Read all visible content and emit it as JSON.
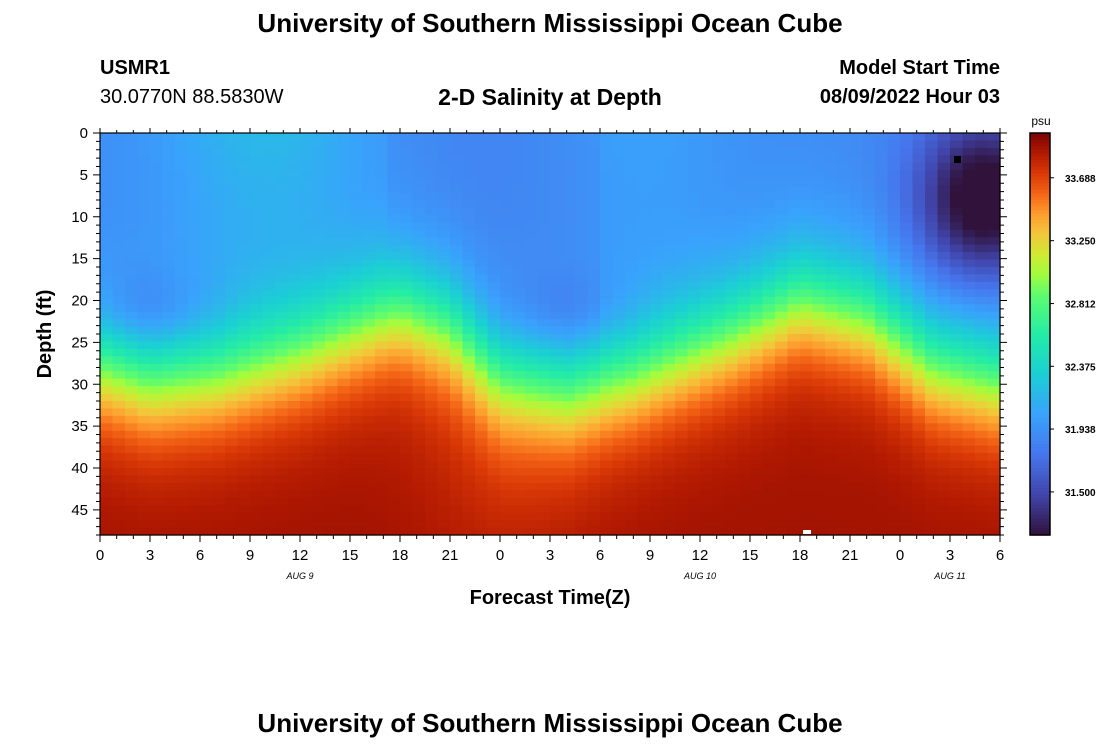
{
  "header": {
    "title": "University of Southern Mississippi Ocean Cube",
    "station": "USMR1",
    "coords": "30.0770N  88.5830W",
    "subtitle": "2-D Salinity at Depth",
    "model_start_label": "Model Start Time",
    "model_start_value": "08/09/2022 Hour 03"
  },
  "footer": {
    "title": "University of Southern Mississippi Ocean Cube"
  },
  "chart_data": {
    "type": "heatmap",
    "title": "2-D Salinity at Depth",
    "xlabel": "Forecast Time(Z)",
    "ylabel": "Depth (ft)",
    "x_range_hours": [
      0,
      54
    ],
    "y_range_ft": [
      0,
      48
    ],
    "x_tick_labels": [
      "0",
      "3",
      "6",
      "9",
      "12",
      "15",
      "18",
      "21",
      "0",
      "3",
      "6",
      "9",
      "12",
      "15",
      "18",
      "21",
      "0",
      "3",
      "6"
    ],
    "y_tick_labels": [
      "0",
      "5",
      "10",
      "15",
      "20",
      "25",
      "30",
      "35",
      "40",
      "45"
    ],
    "y_ticks": [
      0,
      5,
      10,
      15,
      20,
      25,
      30,
      35,
      40,
      45
    ],
    "day_labels": [
      {
        "text": "AUG 9",
        "hour": 12
      },
      {
        "text": "AUG 10",
        "hour": 36
      },
      {
        "text": "AUG 11",
        "hour": 51
      }
    ],
    "colorbar": {
      "unit": "psu",
      "range": [
        31.2,
        34.0
      ],
      "tick_values": [
        31.5,
        31.938,
        32.375,
        32.812,
        33.25,
        33.688
      ],
      "tick_labels": [
        "31.500",
        "31.938",
        "32.375",
        "32.812",
        "33.250",
        "33.688"
      ]
    },
    "description_model": {
      "surface_base": 31.9,
      "bottom_max": 33.9,
      "halocline_depth_ft": [
        {
          "hour": 0,
          "depth": 28
        },
        {
          "hour": 3,
          "depth": 30
        },
        {
          "hour": 7,
          "depth": 29
        },
        {
          "hour": 12,
          "depth": 26
        },
        {
          "hour": 18,
          "depth": 21
        },
        {
          "hour": 21,
          "depth": 23
        },
        {
          "hour": 24,
          "depth": 29
        },
        {
          "hour": 28,
          "depth": 31
        },
        {
          "hour": 32,
          "depth": 29
        },
        {
          "hour": 38,
          "depth": 24
        },
        {
          "hour": 42,
          "depth": 20
        },
        {
          "hour": 46,
          "depth": 22
        },
        {
          "hour": 50,
          "depth": 28
        },
        {
          "hour": 54,
          "depth": 30
        }
      ],
      "fresh_column_hours": [
        17.5,
        30
      ],
      "fresh_lens_center": {
        "hour": 53,
        "depth": 8
      }
    }
  }
}
